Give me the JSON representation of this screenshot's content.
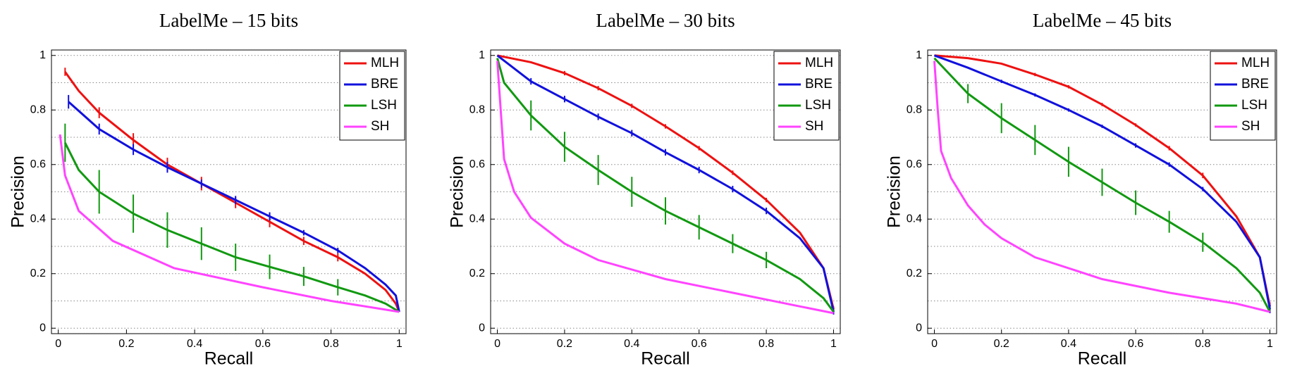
{
  "chart_data": [
    {
      "type": "line",
      "title": "LabelMe – 15 bits",
      "x_label": "Recall",
      "y_label": "Precision",
      "xlim": [
        -0.02,
        1.02
      ],
      "ylim": [
        -0.02,
        1.02
      ],
      "xticks": [
        0,
        0.2,
        0.4,
        0.6,
        0.8,
        1
      ],
      "yticks": [
        0,
        0.2,
        0.4,
        0.6,
        0.8,
        1
      ],
      "minor_yticks": [
        0.1,
        0.3,
        0.5,
        0.7,
        0.9
      ],
      "grid": true,
      "legend": "upper right",
      "series": [
        {
          "name": "MLH",
          "color": "#ee1111",
          "x": [
            0.02,
            0.06,
            0.12,
            0.22,
            0.32,
            0.42,
            0.52,
            0.62,
            0.72,
            0.82,
            0.9,
            0.96,
            0.99,
            1.0
          ],
          "values": [
            0.94,
            0.87,
            0.79,
            0.69,
            0.6,
            0.53,
            0.46,
            0.39,
            0.32,
            0.26,
            0.2,
            0.14,
            0.09,
            0.06
          ],
          "errors": [
            0.015,
            null,
            0.02,
            0.025,
            0.025,
            0.025,
            0.02,
            0.02,
            0.015,
            0.015,
            null,
            null,
            null,
            null
          ]
        },
        {
          "name": "BRE",
          "color": "#1111dd",
          "x": [
            0.03,
            0.12,
            0.22,
            0.32,
            0.42,
            0.52,
            0.62,
            0.72,
            0.82,
            0.9,
            0.96,
            0.99,
            1.0
          ],
          "values": [
            0.83,
            0.73,
            0.655,
            0.59,
            0.53,
            0.47,
            0.41,
            0.35,
            0.285,
            0.22,
            0.16,
            0.12,
            0.06
          ],
          "errors": [
            0.025,
            0.02,
            0.02,
            0.02,
            0.015,
            0.015,
            0.015,
            0.01,
            0.01,
            null,
            null,
            null,
            null
          ]
        },
        {
          "name": "LSH",
          "color": "#119911",
          "x": [
            0.02,
            0.06,
            0.12,
            0.22,
            0.32,
            0.42,
            0.52,
            0.62,
            0.72,
            0.82,
            0.9,
            0.96,
            1.0
          ],
          "values": [
            0.68,
            0.58,
            0.5,
            0.42,
            0.36,
            0.31,
            0.26,
            0.225,
            0.19,
            0.15,
            0.12,
            0.09,
            0.06
          ],
          "errors": [
            0.07,
            null,
            0.08,
            0.07,
            0.065,
            0.06,
            0.05,
            0.045,
            0.035,
            0.03,
            null,
            null,
            null
          ]
        },
        {
          "name": "SH",
          "color": "#ff44ff",
          "x": [
            0.005,
            0.02,
            0.06,
            0.16,
            0.34,
            0.6,
            0.8,
            1.0
          ],
          "values": [
            0.71,
            0.56,
            0.43,
            0.32,
            0.22,
            0.15,
            0.1,
            0.06
          ],
          "errors": [
            null,
            null,
            null,
            null,
            null,
            null,
            null,
            null
          ]
        }
      ]
    },
    {
      "type": "line",
      "title": "LabelMe – 30 bits",
      "x_label": "Recall",
      "y_label": "Precision",
      "xlim": [
        -0.02,
        1.02
      ],
      "ylim": [
        -0.02,
        1.02
      ],
      "xticks": [
        0,
        0.2,
        0.4,
        0.6,
        0.8,
        1
      ],
      "yticks": [
        0,
        0.2,
        0.4,
        0.6,
        0.8,
        1
      ],
      "minor_yticks": [
        0.1,
        0.3,
        0.5,
        0.7,
        0.9
      ],
      "grid": true,
      "legend": "upper right",
      "series": [
        {
          "name": "MLH",
          "color": "#ee1111",
          "x": [
            0,
            0.1,
            0.2,
            0.3,
            0.4,
            0.5,
            0.6,
            0.7,
            0.8,
            0.9,
            0.97,
            1.0
          ],
          "values": [
            1.0,
            0.975,
            0.935,
            0.88,
            0.815,
            0.74,
            0.66,
            0.57,
            0.47,
            0.35,
            0.22,
            0.07
          ],
          "errors": [
            null,
            null,
            0.008,
            0.008,
            0.008,
            0.008,
            0.008,
            0.008,
            0.008,
            null,
            null,
            0.01
          ]
        },
        {
          "name": "BRE",
          "color": "#1111dd",
          "x": [
            0,
            0.1,
            0.2,
            0.3,
            0.4,
            0.5,
            0.6,
            0.7,
            0.8,
            0.9,
            0.97,
            1.0
          ],
          "values": [
            1.0,
            0.905,
            0.84,
            0.775,
            0.715,
            0.645,
            0.58,
            0.51,
            0.43,
            0.33,
            0.22,
            0.06
          ],
          "errors": [
            null,
            0.012,
            0.012,
            0.012,
            0.012,
            0.012,
            0.012,
            0.012,
            0.012,
            null,
            null,
            0.01
          ]
        },
        {
          "name": "LSH",
          "color": "#119911",
          "x": [
            0,
            0.02,
            0.1,
            0.2,
            0.3,
            0.4,
            0.5,
            0.6,
            0.7,
            0.8,
            0.9,
            0.97,
            1.0
          ],
          "values": [
            0.99,
            0.9,
            0.78,
            0.665,
            0.58,
            0.5,
            0.43,
            0.37,
            0.31,
            0.25,
            0.18,
            0.11,
            0.06
          ],
          "errors": [
            null,
            null,
            0.055,
            0.055,
            0.055,
            0.055,
            0.05,
            0.045,
            0.035,
            0.03,
            null,
            null,
            null
          ]
        },
        {
          "name": "SH",
          "color": "#ff44ff",
          "x": [
            0,
            0.01,
            0.02,
            0.05,
            0.1,
            0.2,
            0.3,
            0.5,
            0.7,
            0.9,
            1.0
          ],
          "values": [
            0.98,
            0.8,
            0.62,
            0.5,
            0.405,
            0.31,
            0.25,
            0.18,
            0.13,
            0.08,
            0.055
          ],
          "errors": [
            null,
            null,
            null,
            null,
            null,
            null,
            null,
            null,
            null,
            null,
            null
          ]
        }
      ]
    },
    {
      "type": "line",
      "title": "LabelMe – 45 bits",
      "x_label": "Recall",
      "y_label": "Precision",
      "xlim": [
        -0.02,
        1.02
      ],
      "ylim": [
        -0.02,
        1.02
      ],
      "xticks": [
        0,
        0.2,
        0.4,
        0.6,
        0.8,
        1
      ],
      "yticks": [
        0,
        0.2,
        0.4,
        0.6,
        0.8,
        1
      ],
      "minor_yticks": [
        0.1,
        0.3,
        0.5,
        0.7,
        0.9
      ],
      "grid": true,
      "legend": "upper right",
      "series": [
        {
          "name": "MLH",
          "color": "#ee1111",
          "x": [
            0,
            0.1,
            0.2,
            0.3,
            0.4,
            0.5,
            0.6,
            0.7,
            0.8,
            0.9,
            0.97,
            1.0
          ],
          "values": [
            1.0,
            0.99,
            0.97,
            0.93,
            0.885,
            0.82,
            0.745,
            0.66,
            0.56,
            0.41,
            0.26,
            0.08
          ],
          "errors": [
            null,
            null,
            null,
            0.006,
            0.006,
            0.006,
            0.006,
            0.008,
            0.01,
            null,
            null,
            0.015
          ]
        },
        {
          "name": "BRE",
          "color": "#1111dd",
          "x": [
            0,
            0.1,
            0.2,
            0.3,
            0.4,
            0.5,
            0.6,
            0.7,
            0.8,
            0.9,
            0.97,
            1.0
          ],
          "values": [
            1.0,
            0.955,
            0.905,
            0.855,
            0.8,
            0.74,
            0.67,
            0.6,
            0.51,
            0.39,
            0.26,
            0.07
          ],
          "errors": [
            null,
            null,
            0.006,
            0.006,
            0.006,
            0.006,
            0.008,
            0.008,
            0.008,
            null,
            null,
            0.015
          ]
        },
        {
          "name": "LSH",
          "color": "#119911",
          "x": [
            0,
            0.1,
            0.2,
            0.3,
            0.4,
            0.5,
            0.6,
            0.7,
            0.8,
            0.9,
            0.97,
            1.0
          ],
          "values": [
            0.99,
            0.86,
            0.77,
            0.69,
            0.61,
            0.535,
            0.46,
            0.39,
            0.315,
            0.22,
            0.13,
            0.06
          ],
          "errors": [
            null,
            0.035,
            0.055,
            0.055,
            0.055,
            0.05,
            0.045,
            0.04,
            0.035,
            null,
            null,
            null
          ]
        },
        {
          "name": "SH",
          "color": "#ff44ff",
          "x": [
            0,
            0.01,
            0.02,
            0.05,
            0.1,
            0.15,
            0.2,
            0.3,
            0.5,
            0.7,
            0.9,
            1.0
          ],
          "values": [
            0.98,
            0.8,
            0.65,
            0.55,
            0.45,
            0.38,
            0.33,
            0.26,
            0.18,
            0.13,
            0.09,
            0.06
          ],
          "errors": [
            null,
            null,
            null,
            null,
            null,
            null,
            null,
            null,
            null,
            null,
            null,
            null
          ]
        }
      ]
    }
  ]
}
